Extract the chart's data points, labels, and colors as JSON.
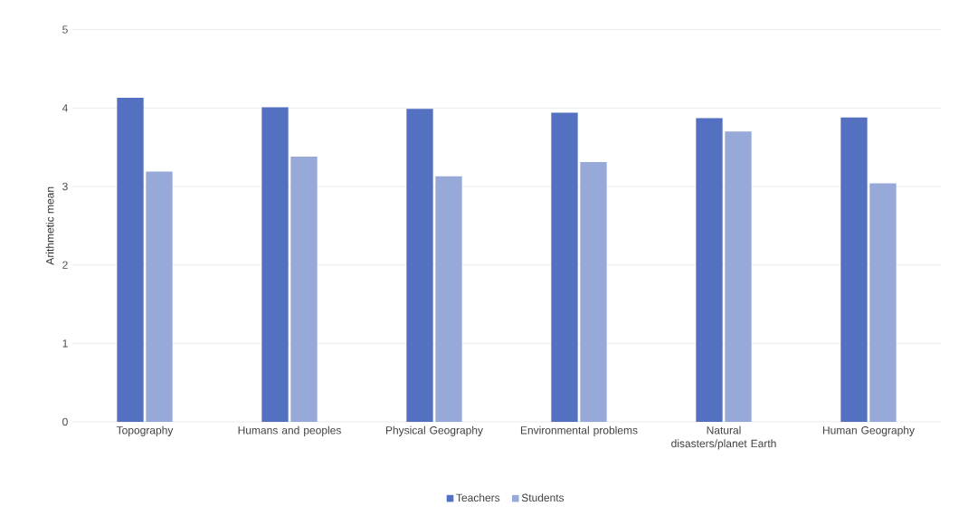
{
  "chart_data": {
    "type": "bar",
    "ylabel": "Arithmetic mean",
    "categories": [
      "Topography",
      "Humans and peoples",
      "Physical Geography",
      "Environmental problems",
      "Natural disasters/planet Earth",
      "Human Geography"
    ],
    "series": [
      {
        "name": "Teachers",
        "color": "#5470c0",
        "values": [
          4.13,
          4.01,
          3.99,
          3.94,
          3.87,
          3.88
        ]
      },
      {
        "name": "Students",
        "color": "#97a9d8",
        "values": [
          3.19,
          3.38,
          3.13,
          3.31,
          3.7,
          3.04
        ]
      }
    ],
    "ylim": [
      0,
      5
    ],
    "yticks": [
      0,
      1,
      2,
      3,
      4,
      5
    ],
    "grid": "y",
    "legend": "bottom"
  }
}
